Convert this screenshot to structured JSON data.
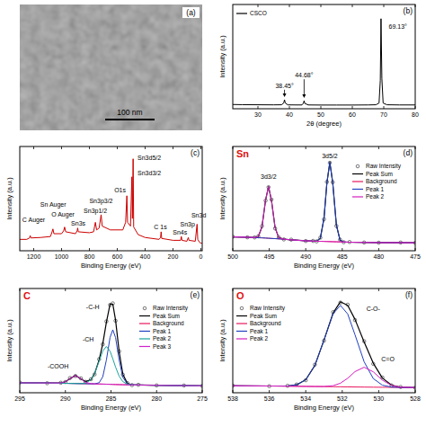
{
  "chart_data": [
    {
      "type": "image",
      "panel": "(a)",
      "annotations": [
        {
          "text": "100 nm"
        }
      ]
    },
    {
      "type": "line",
      "panel": "(b)",
      "x_label": "2θ (degree)",
      "y_label": "Intensity (a.u.)",
      "x": [
        22,
        25,
        30,
        35,
        37.5,
        38.2,
        38.45,
        38.7,
        39.5,
        42,
        44,
        44.45,
        44.68,
        44.9,
        46,
        50,
        55,
        60,
        65,
        67.5,
        68.5,
        68.9,
        69.13,
        69.4,
        69.8,
        71,
        75,
        80
      ],
      "series": [
        {
          "name": "CSCO",
          "color": "#000000",
          "values": [
            4.5,
            4.3,
            4.2,
            4.1,
            4.2,
            6,
            9.5,
            6,
            4.1,
            4,
            4,
            5.8,
            8.5,
            5.6,
            4,
            3.9,
            3.9,
            3.9,
            4,
            4.2,
            6,
            30,
            95,
            32,
            6,
            4.2,
            4,
            4
          ]
        }
      ],
      "xlim": [
        22,
        80
      ],
      "xticks": [
        30,
        40,
        50,
        60,
        70,
        80
      ],
      "ylim": [
        0,
        110
      ],
      "tick_labels": "x",
      "legend": "upper left",
      "annotations": [
        {
          "text": "69.13°",
          "x": 74.5,
          "y": 84
        },
        {
          "text": "38.45°",
          "x": 38.45,
          "y": 22,
          "marker": "arrow"
        },
        {
          "text": "44.68°",
          "x": 44.68,
          "y": 33,
          "marker": "arrow"
        }
      ]
    },
    {
      "type": "line",
      "panel": "(c)",
      "x_label": "Binding Energy (eV)",
      "y_label": "Intensity (a.u.)",
      "x": [
        1300,
        1250,
        1230,
        1225,
        1220,
        1150,
        1080,
        1070,
        1062,
        1055,
        1000,
        985,
        978,
        970,
        900,
        888,
        884,
        880,
        800,
        770,
        757,
        748,
        730,
        716,
        708,
        650,
        560,
        540,
        531,
        526,
        505,
        495,
        491,
        486,
        482,
        450,
        400,
        300,
        289,
        285,
        281,
        200,
        145,
        140,
        135,
        100,
        90,
        85,
        40,
        27,
        22,
        10,
        0,
        -10
      ],
      "series": [
        {
          "color": "#cc0000",
          "values": [
            12,
            12,
            13.5,
            16,
            13.5,
            14,
            15,
            19,
            23,
            18,
            18,
            21,
            25,
            20,
            18,
            21,
            24,
            20,
            19,
            20,
            30,
            22,
            24,
            38,
            26,
            22,
            22,
            30,
            58,
            30,
            26,
            78,
            34,
            97,
            25,
            17,
            14,
            12,
            14,
            20,
            13,
            11,
            11,
            15,
            11,
            10,
            14,
            11,
            10,
            28,
            12,
            9,
            8,
            8
          ]
        }
      ],
      "xlim": [
        1300,
        -10
      ],
      "xticks": [
        1200,
        1000,
        800,
        600,
        400,
        200,
        0
      ],
      "ylim": [
        0,
        110
      ],
      "tick_labels": "x",
      "annotations": [
        {
          "text": "C Auger",
          "x": 1200,
          "y": 30
        },
        {
          "text": "Sn Auger",
          "x": 1060,
          "y": 46
        },
        {
          "text": "O Auger",
          "x": 990,
          "y": 36
        },
        {
          "text": "Sn3s",
          "x": 880,
          "y": 27
        },
        {
          "text": "Sn3p1/2",
          "x": 757,
          "y": 40
        },
        {
          "text": "Sn3p3/2",
          "x": 716,
          "y": 50
        },
        {
          "text": "O1s",
          "x": 580,
          "y": 62
        },
        {
          "text": "Sn3d3/2",
          "x": 370,
          "y": 80
        },
        {
          "text": "Sn3d5/2",
          "x": 370,
          "y": 96
        },
        {
          "text": "C 1s",
          "x": 290,
          "y": 23
        },
        {
          "text": "Sn4s",
          "x": 150,
          "y": 17
        },
        {
          "text": "Sn3p",
          "x": 95,
          "y": 26
        },
        {
          "text": "Sn3d",
          "x": 15,
          "y": 35
        }
      ]
    },
    {
      "type": "line",
      "panel": "(d)",
      "title": "Sn",
      "x_label": "Binding Energy (eV)",
      "y_label": "Intensity (a.u.)",
      "x": [
        500,
        498,
        497,
        496.5,
        496,
        495.5,
        495.1,
        494.7,
        494.2,
        493.7,
        493,
        492,
        490,
        489,
        488.5,
        488,
        487.5,
        487.1,
        486.7,
        486.3,
        485.8,
        485.3,
        484.8,
        484,
        482,
        480,
        477,
        475
      ],
      "series": [
        {
          "name": "Raw Intensity",
          "color": "#444444",
          "marker": "circle",
          "line_style": "none",
          "values": [
            14.2,
            13.5,
            13.4,
            14.6,
            24.8,
            50.5,
            64,
            51.6,
            22.5,
            13.5,
            11.4,
            11.2,
            9.8,
            9.9,
            9.4,
            13.2,
            31.8,
            69.3,
            88.6,
            69,
            25,
            11.2,
            8.6,
            8.8,
            8.3,
            8.1,
            8.3,
            7.9
          ]
        },
        {
          "name": "Peak Sum",
          "color": "#000000",
          "values": [
            14,
            13.6,
            13.3,
            14.3,
            24,
            51.3,
            64.6,
            50.9,
            23.2,
            13.2,
            11.6,
            11,
            10,
            9.7,
            9.6,
            12.7,
            32.6,
            68.5,
            89.2,
            68.3,
            25.8,
            10.7,
            8.8,
            8.6,
            8.4,
            8.2,
            8.1,
            8
          ]
        },
        {
          "name": "Background",
          "color": "#e8175d",
          "values": [
            14,
            13.6,
            13.3,
            13.1,
            13,
            12.8,
            12.6,
            12.4,
            12.2,
            12,
            11.6,
            11,
            10,
            9.7,
            9.6,
            9.5,
            9.4,
            9.3,
            9.2,
            9.1,
            9,
            8.9,
            8.8,
            8.6,
            8.4,
            8.2,
            8.1,
            8
          ]
        },
        {
          "name": "Peak 1",
          "color": "#1f3fbf",
          "values": [
            14,
            13.6,
            13.3,
            13.1,
            13,
            12.8,
            12.6,
            12.4,
            12.2,
            12,
            11.6,
            11,
            10,
            9.7,
            9.6,
            12.7,
            32.6,
            68.5,
            89.2,
            68.3,
            25.8,
            10.7,
            8.8,
            8.6,
            8.4,
            8.2,
            8.1,
            8
          ]
        },
        {
          "name": "Peak 2",
          "color": "#d61fc0",
          "values": [
            14,
            13.6,
            13.3,
            14.3,
            24,
            51.3,
            64.6,
            50.9,
            23.2,
            13.2,
            11.6,
            11,
            10,
            9.7,
            9.6,
            9.5,
            9.4,
            9.3,
            9.2,
            9.1,
            9,
            8.9,
            8.8,
            8.6,
            8.4,
            8.2,
            8.1,
            8
          ]
        }
      ],
      "xlim": [
        500,
        475
      ],
      "xticks": [
        500,
        495,
        490,
        485,
        480,
        475
      ],
      "ylim": [
        0,
        105
      ],
      "tick_labels": "x",
      "legend": "right",
      "annotations": [
        {
          "text": "3d3/2",
          "x": 495.1,
          "y": 72
        },
        {
          "text": "3d5/2",
          "x": 486.7,
          "y": 93
        }
      ]
    },
    {
      "type": "line",
      "panel": "(e)",
      "title": "C",
      "x_label": "Binding Energy (eV)",
      "y_label": "Intensity (a.u.)",
      "x": [
        295,
        292,
        290.5,
        290,
        289.5,
        288.9,
        288.3,
        287.8,
        287.2,
        286.8,
        286.3,
        285.9,
        285.5,
        285.1,
        284.8,
        284.5,
        284.1,
        283.7,
        283.2,
        282.7,
        282,
        280,
        277,
        275
      ],
      "series": [
        {
          "name": "Raw Intensity",
          "color": "#444444",
          "marker": "circle",
          "line_style": "none",
          "values": [
            10.3,
            9.6,
            10.1,
            10.8,
            14.8,
            16.9,
            14.5,
            11,
            13.6,
            18.5,
            33.8,
            48.8,
            71.9,
            88.5,
            90,
            72.5,
            41.8,
            18.2,
            9.7,
            7.7,
            8,
            7.4,
            7.3,
            6.9
          ]
        },
        {
          "name": "Peak Sum",
          "color": "#000000",
          "values": [
            10,
            9.8,
            9.8,
            11,
            14.3,
            17.3,
            14.1,
            11.2,
            13.1,
            19.1,
            33.1,
            49.5,
            71.1,
            89.2,
            89.2,
            73.2,
            41.1,
            18.6,
            9.4,
            7.9,
            7.8,
            7.5,
            7.2,
            7
          ]
        },
        {
          "name": "Background",
          "color": "#e8175d",
          "values": [
            10,
            9.8,
            9.6,
            9.5,
            9.4,
            9.3,
            9.2,
            9.1,
            9,
            8.9,
            8.8,
            8.7,
            8.6,
            8.5,
            8.4,
            8.3,
            8.2,
            8.1,
            8,
            7.9,
            7.8,
            7.5,
            7.2,
            7
          ]
        },
        {
          "name": "Peak 1",
          "color": "#1f3fbf",
          "values": [
            10,
            9.8,
            9.6,
            9.5,
            9.4,
            9.3,
            9.2,
            9.1,
            9,
            8.9,
            10.1,
            16.1,
            33.1,
            55.8,
            63.4,
            55.6,
            32.7,
            15.5,
            8.8,
            7.9,
            7.8,
            7.5,
            7.2,
            7
          ]
        },
        {
          "name": "Peak 2",
          "color": "#1aa39a",
          "values": [
            10,
            9.8,
            9.6,
            9.5,
            9.4,
            9.3,
            9.2,
            9.7,
            13,
            19.1,
            31.8,
            42.1,
            46.6,
            41.9,
            34.2,
            25.9,
            16.6,
            11.2,
            8.6,
            7.9,
            7.8,
            7.5,
            7.2,
            7
          ]
        },
        {
          "name": "Peak 3",
          "color": "#cc22cc",
          "values": [
            10,
            9.8,
            9.8,
            11,
            14.3,
            17.3,
            14.1,
            10.6,
            9.1,
            8.9,
            8.8,
            8.7,
            8.6,
            8.5,
            8.4,
            8.3,
            8.2,
            8.1,
            8,
            7.9,
            7.8,
            7.5,
            7.2,
            7
          ]
        }
      ],
      "xlim": [
        295,
        275
      ],
      "xticks": [
        295,
        290,
        285,
        280,
        275
      ],
      "ylim": [
        0,
        105
      ],
      "tick_labels": "x",
      "legend": "right",
      "annotations": [
        {
          "text": "-C-H",
          "x": 287,
          "y": 84
        },
        {
          "text": "-CH",
          "x": 287.5,
          "y": 52
        },
        {
          "text": "-COOH",
          "x": 290.8,
          "y": 24
        }
      ]
    },
    {
      "type": "line",
      "panel": "(f)",
      "title": "O",
      "x_label": "Binding Energy (eV)",
      "y_label": "Intensity (a.u.)",
      "x": [
        538,
        536,
        535,
        534.5,
        534,
        533.5,
        533,
        532.5,
        532.1,
        531.7,
        531.3,
        530.8,
        530.3,
        529.8,
        529.3,
        528.8,
        528
      ],
      "series": [
        {
          "name": "Raw Intensity",
          "color": "#444444",
          "marker": "circle",
          "line_style": "none",
          "values": [
            7.2,
            6.6,
            7,
            8.3,
            12.6,
            28.3,
            52.4,
            81.2,
            90.8,
            88.7,
            73.2,
            51.9,
            29.1,
            15.3,
            7.4,
            5.8,
            5
          ]
        },
        {
          "name": "Peak Sum",
          "color": "#000000",
          "values": [
            7,
            6.8,
            6.8,
            8,
            13.1,
            27.5,
            53.1,
            80.5,
            91.6,
            88,
            73.9,
            51.2,
            29.8,
            14.8,
            7.7,
            5.6,
            5.2
          ]
        },
        {
          "name": "Background",
          "color": "#e8175d",
          "values": [
            7,
            6.8,
            6.6,
            6.5,
            6.4,
            6.3,
            6.2,
            6.1,
            6,
            5.9,
            5.8,
            5.7,
            5.6,
            5.5,
            5.4,
            5.3,
            5.2
          ]
        },
        {
          "name": "Peak 1",
          "color": "#1f3fbf",
          "values": [
            7,
            6.8,
            6.8,
            8,
            13.1,
            27.5,
            53,
            79.5,
            88,
            79.3,
            58.4,
            31.2,
            14.3,
            7.6,
            5.7,
            5.3,
            5.2
          ]
        },
        {
          "name": "Peak 2",
          "color": "#d61fc0",
          "values": [
            7,
            6.8,
            6.6,
            6.5,
            6.4,
            6.3,
            6.3,
            7.1,
            9.6,
            14.6,
            21.3,
            25.7,
            21.1,
            12.7,
            7.4,
            5.6,
            5.2
          ]
        }
      ],
      "xlim": [
        538,
        528
      ],
      "xticks": [
        538,
        536,
        534,
        532,
        530,
        528
      ],
      "ylim": [
        0,
        105
      ],
      "tick_labels": "x",
      "legend": "upper left",
      "annotations": [
        {
          "text": "C-O-",
          "x": 530.3,
          "y": 82
        },
        {
          "text": "C=O",
          "x": 529.5,
          "y": 32
        }
      ]
    }
  ]
}
